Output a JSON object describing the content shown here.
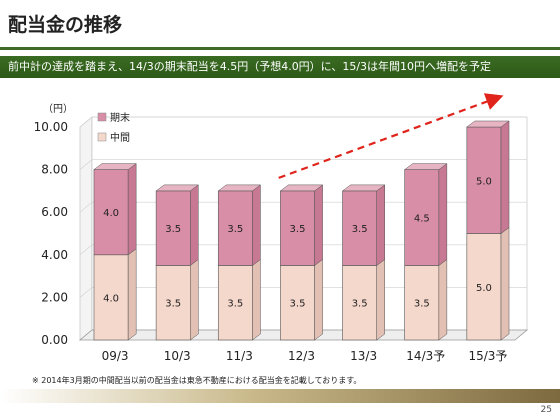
{
  "header": {
    "title": "配当金の推移",
    "banner": "前中計の達成を踏まえ、14/3の期末配当を4.5円（予想4.0円）に、15/3は年間10円へ増配を予定"
  },
  "footnote": "※ 2014年3月期の中間配当以前の配当金は東急不動産における配当金を記載しております。",
  "page_number": "25",
  "colors": {
    "interim": "#f5d8cc",
    "year_end": "#d98ea7",
    "theme_green": "#3f6b2a",
    "arrow": "#e0241b"
  },
  "chart_data": {
    "type": "bar",
    "stacked": true,
    "unit_label": "（円）",
    "categories": [
      "09/3",
      "10/3",
      "11/3",
      "12/3",
      "13/3",
      "14/3予",
      "15/3予"
    ],
    "series": [
      {
        "name": "中間",
        "values": [
          4.0,
          3.5,
          3.5,
          3.5,
          3.5,
          3.5,
          5.0
        ]
      },
      {
        "name": "期末",
        "values": [
          4.0,
          3.5,
          3.5,
          3.5,
          3.5,
          4.5,
          5.0
        ]
      }
    ],
    "ylim": [
      0,
      10
    ],
    "yticks": [
      "0.00",
      "2.00",
      "4.00",
      "6.00",
      "8.00",
      "10.00"
    ],
    "data_labels": [
      [
        "4.0",
        "3.5",
        "3.5",
        "3.5",
        "3.5",
        "3.5",
        "5.0"
      ],
      [
        "4.0",
        "3.5",
        "3.5",
        "3.5",
        "3.5",
        "4.5",
        "5.0"
      ]
    ],
    "legend_position": "top-left",
    "trend_arrow": {
      "from_category": "12/3",
      "to_category": "15/3予",
      "style": "dashed"
    }
  }
}
